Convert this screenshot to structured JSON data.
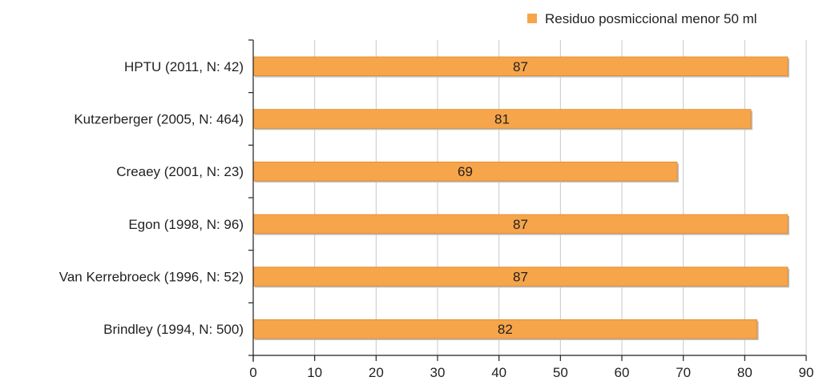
{
  "chart_data": {
    "type": "bar",
    "orientation": "horizontal",
    "categories": [
      "HPTU (2011, N: 42)",
      "Kutzerberger (2005, N: 464)",
      "Creaey (2001, N: 23)",
      "Egon (1998, N: 96)",
      "Van Kerrebroeck (1996, N: 52)",
      "Brindley (1994, N: 500)"
    ],
    "series": [
      {
        "name": "Residuo posmiccional menor 50 ml",
        "values": [
          87,
          81,
          69,
          87,
          87,
          82
        ],
        "color": "#f6a54a"
      }
    ],
    "xlim": [
      0,
      90
    ],
    "xticks": [
      0,
      10,
      20,
      30,
      40,
      50,
      60,
      70,
      80,
      90
    ],
    "grid": "vertical",
    "legend": "top-right",
    "title": "",
    "xlabel": "",
    "ylabel": ""
  },
  "colors": {
    "bar": "#f6a54a",
    "bar_edge": "#e08a28",
    "grid": "#c8c8c8",
    "axis": "#231f20"
  }
}
